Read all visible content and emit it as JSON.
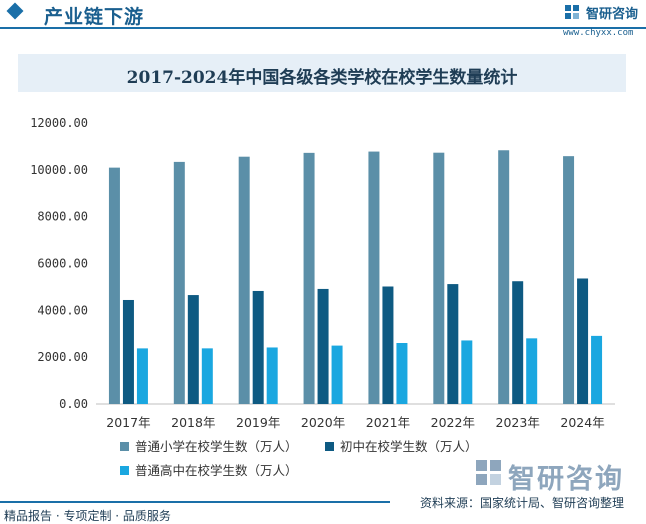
{
  "header": {
    "title": "产业链下游",
    "brand_name": "智研咨询",
    "brand_url": "www.chyxx.com"
  },
  "chart_data": {
    "type": "bar",
    "title": "2017-2024年中国各级各类学校在校学生数量统计",
    "categories": [
      "2017年",
      "2018年",
      "2019年",
      "2020年",
      "2021年",
      "2022年",
      "2023年",
      "2024年"
    ],
    "series": [
      {
        "name": "普通小学在校学生数（万人）",
        "color": "#5b8fa8",
        "values": [
          10094,
          10339,
          10561,
          10725,
          10780,
          10732,
          10836,
          10584
        ]
      },
      {
        "name": "初中在校学生数（万人）",
        "color": "#0e5a82",
        "values": [
          4442,
          4652,
          4827,
          4914,
          5018,
          5121,
          5243,
          5360
        ]
      },
      {
        "name": "普通高中在校学生数（万人）",
        "color": "#1aa7e0",
        "values": [
          2375,
          2376,
          2414,
          2494,
          2605,
          2714,
          2804,
          2909
        ]
      }
    ],
    "yticks": [
      "0.00",
      "2000.00",
      "4000.00",
      "6000.00",
      "8000.00",
      "10000.00",
      "12000.00"
    ],
    "ylim": [
      0,
      12000
    ],
    "grid": false,
    "legend_position": "bottom"
  },
  "watermark_brand": "智研咨询",
  "footer": {
    "left": "精品报告 · 专项定制 · 品质服务",
    "right": "资料来源：国家统计局、智研咨询整理"
  }
}
